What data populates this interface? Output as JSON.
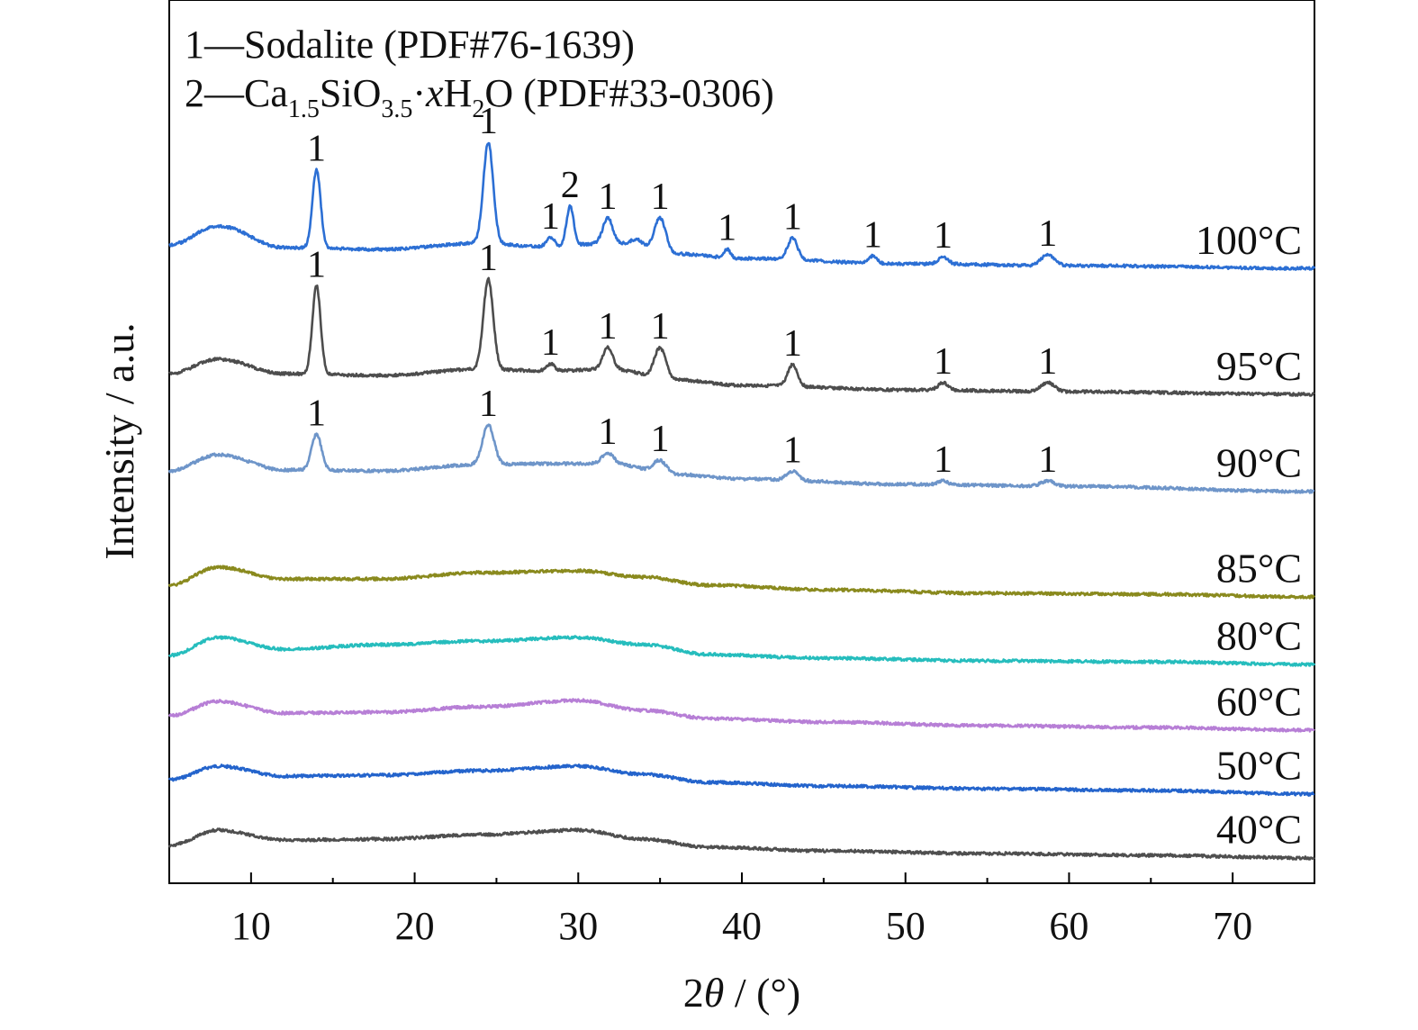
{
  "chart_data": {
    "type": "line",
    "xlabel": "2θ / (°)",
    "ylabel": "Intensity / a.u.",
    "xlim": [
      5,
      75
    ],
    "xticks": [
      10,
      20,
      30,
      40,
      50,
      60,
      70
    ],
    "stacked_offset": true,
    "legend": {
      "placement": "top-left",
      "entries": [
        {
          "marker": "1",
          "text": "Sodalite (PDF#76-1639)",
          "parts": [
            [
              "1—Sodalite (PDF#76-1639)",
              "n"
            ]
          ]
        },
        {
          "marker": "2",
          "text": "Ca1.5SiO3.5·xH2O (PDF#33-0306)",
          "parts": [
            [
              "2—Ca",
              "n"
            ],
            [
              "1.5",
              "sub"
            ],
            [
              "SiO",
              "n"
            ],
            [
              "3.5",
              "sub"
            ],
            [
              "·",
              "n"
            ],
            [
              "x",
              "i"
            ],
            [
              "H",
              "n"
            ],
            [
              "2",
              "sub"
            ],
            [
              "O (PDF#33-0306)",
              "n"
            ]
          ]
        }
      ]
    },
    "series": [
      {
        "name": "100°C",
        "color": "#2c6fd4",
        "bg": [
          [
            5,
            272
          ],
          [
            8,
            251
          ],
          [
            12,
            275
          ],
          [
            18,
            277
          ],
          [
            24,
            270
          ],
          [
            28,
            274
          ],
          [
            32,
            270
          ],
          [
            36,
            282
          ],
          [
            40,
            287
          ],
          [
            50,
            293
          ],
          [
            60,
            295
          ],
          [
            75,
            298
          ]
        ],
        "peaks": [
          [
            14.0,
            -87,
            0.25
          ],
          [
            24.5,
            -112,
            0.3
          ],
          [
            28.3,
            -10,
            0.25
          ],
          [
            29.5,
            -44,
            0.22
          ],
          [
            31.8,
            -28,
            0.3
          ],
          [
            33.6,
            -8,
            0.4
          ],
          [
            35.0,
            -38,
            0.35
          ],
          [
            39.1,
            -10,
            0.2
          ],
          [
            43.1,
            -24,
            0.3
          ],
          [
            48.0,
            -8,
            0.25
          ],
          [
            52.3,
            -8,
            0.3
          ],
          [
            58.7,
            -12,
            0.4
          ]
        ],
        "labels": [
          [
            14.0,
            "1"
          ],
          [
            24.5,
            "1"
          ],
          [
            28.3,
            "1"
          ],
          [
            29.5,
            "2"
          ],
          [
            31.8,
            "1"
          ],
          [
            35.0,
            "1"
          ],
          [
            39.1,
            "1"
          ],
          [
            43.1,
            "1"
          ],
          [
            48.0,
            "1"
          ],
          [
            52.3,
            "1"
          ],
          [
            58.7,
            "1"
          ]
        ]
      },
      {
        "name": "95°C",
        "color": "#4d4d4d",
        "bg": [
          [
            5,
            415
          ],
          [
            8,
            399
          ],
          [
            12,
            415
          ],
          [
            18,
            417
          ],
          [
            24,
            410
          ],
          [
            28,
            412
          ],
          [
            32,
            410
          ],
          [
            36,
            422
          ],
          [
            40,
            428
          ],
          [
            50,
            433
          ],
          [
            60,
            435
          ],
          [
            75,
            438
          ]
        ],
        "peaks": [
          [
            14.0,
            -98,
            0.25
          ],
          [
            24.5,
            -100,
            0.3
          ],
          [
            28.3,
            -8,
            0.25
          ],
          [
            31.8,
            -24,
            0.3
          ],
          [
            35.0,
            -34,
            0.35
          ],
          [
            43.1,
            -24,
            0.3
          ],
          [
            52.3,
            -8,
            0.3
          ],
          [
            58.7,
            -10,
            0.4
          ]
        ],
        "labels": [
          [
            14.0,
            "1"
          ],
          [
            24.5,
            "1"
          ],
          [
            28.3,
            "1"
          ],
          [
            31.8,
            "1"
          ],
          [
            35.0,
            "1"
          ],
          [
            43.1,
            "1"
          ],
          [
            52.3,
            "1"
          ],
          [
            58.7,
            "1"
          ]
        ]
      },
      {
        "name": "90°C",
        "color": "#6e95c9",
        "bg": [
          [
            5,
            523
          ],
          [
            8,
            505
          ],
          [
            12,
            522
          ],
          [
            18,
            523
          ],
          [
            24,
            516
          ],
          [
            28,
            515
          ],
          [
            32,
            515
          ],
          [
            36,
            527
          ],
          [
            40,
            532
          ],
          [
            50,
            538
          ],
          [
            60,
            540
          ],
          [
            75,
            546
          ]
        ],
        "peaks": [
          [
            14.0,
            -40,
            0.3
          ],
          [
            24.5,
            -44,
            0.35
          ],
          [
            31.8,
            -12,
            0.35
          ],
          [
            35.0,
            -14,
            0.4
          ],
          [
            43.1,
            -10,
            0.35
          ],
          [
            52.3,
            -4,
            0.3
          ],
          [
            58.7,
            -6,
            0.4
          ]
        ],
        "labels": [
          [
            14.0,
            "1"
          ],
          [
            24.5,
            "1"
          ],
          [
            31.8,
            "1"
          ],
          [
            35.0,
            "1"
          ],
          [
            43.1,
            "1"
          ],
          [
            52.3,
            "1"
          ],
          [
            58.7,
            "1"
          ]
        ]
      },
      {
        "name": "85°C",
        "color": "#8a8a1e",
        "bg": [
          [
            5,
            650
          ],
          [
            8,
            630
          ],
          [
            12,
            643
          ],
          [
            18,
            643
          ],
          [
            24,
            636
          ],
          [
            30,
            634
          ],
          [
            34,
            641
          ],
          [
            38,
            650
          ],
          [
            45,
            655
          ],
          [
            55,
            659
          ],
          [
            65,
            660
          ],
          [
            75,
            663
          ]
        ],
        "peaks": [],
        "labels": []
      },
      {
        "name": "80°C",
        "color": "#26bdbd",
        "bg": [
          [
            5,
            728
          ],
          [
            8,
            708
          ],
          [
            12,
            721
          ],
          [
            18,
            716
          ],
          [
            24,
            712
          ],
          [
            30,
            708
          ],
          [
            34,
            716
          ],
          [
            38,
            727
          ],
          [
            45,
            731
          ],
          [
            55,
            734
          ],
          [
            65,
            735
          ],
          [
            75,
            738
          ]
        ],
        "peaks": [],
        "labels": []
      },
      {
        "name": "60°C",
        "color": "#b77fd6",
        "bg": [
          [
            5,
            795
          ],
          [
            8,
            779
          ],
          [
            12,
            792
          ],
          [
            18,
            791
          ],
          [
            24,
            785
          ],
          [
            30,
            778
          ],
          [
            34,
            789
          ],
          [
            38,
            798
          ],
          [
            45,
            802
          ],
          [
            55,
            806
          ],
          [
            65,
            808
          ],
          [
            75,
            811
          ]
        ],
        "peaks": [],
        "labels": []
      },
      {
        "name": "50°C",
        "color": "#2464cc",
        "bg": [
          [
            5,
            866
          ],
          [
            8,
            851
          ],
          [
            12,
            862
          ],
          [
            18,
            861
          ],
          [
            24,
            856
          ],
          [
            30,
            851
          ],
          [
            34,
            860
          ],
          [
            38,
            869
          ],
          [
            45,
            873
          ],
          [
            55,
            876
          ],
          [
            65,
            878
          ],
          [
            75,
            882
          ]
        ],
        "peaks": [],
        "labels": []
      },
      {
        "name": "40°C",
        "color": "#4f4f4f",
        "bg": [
          [
            5,
            939
          ],
          [
            8,
            922
          ],
          [
            12,
            933
          ],
          [
            18,
            932
          ],
          [
            24,
            927
          ],
          [
            30,
            922
          ],
          [
            34,
            932
          ],
          [
            38,
            941
          ],
          [
            45,
            945
          ],
          [
            55,
            948
          ],
          [
            65,
            950
          ],
          [
            75,
            953
          ]
        ],
        "peaks": [],
        "labels": []
      }
    ]
  }
}
